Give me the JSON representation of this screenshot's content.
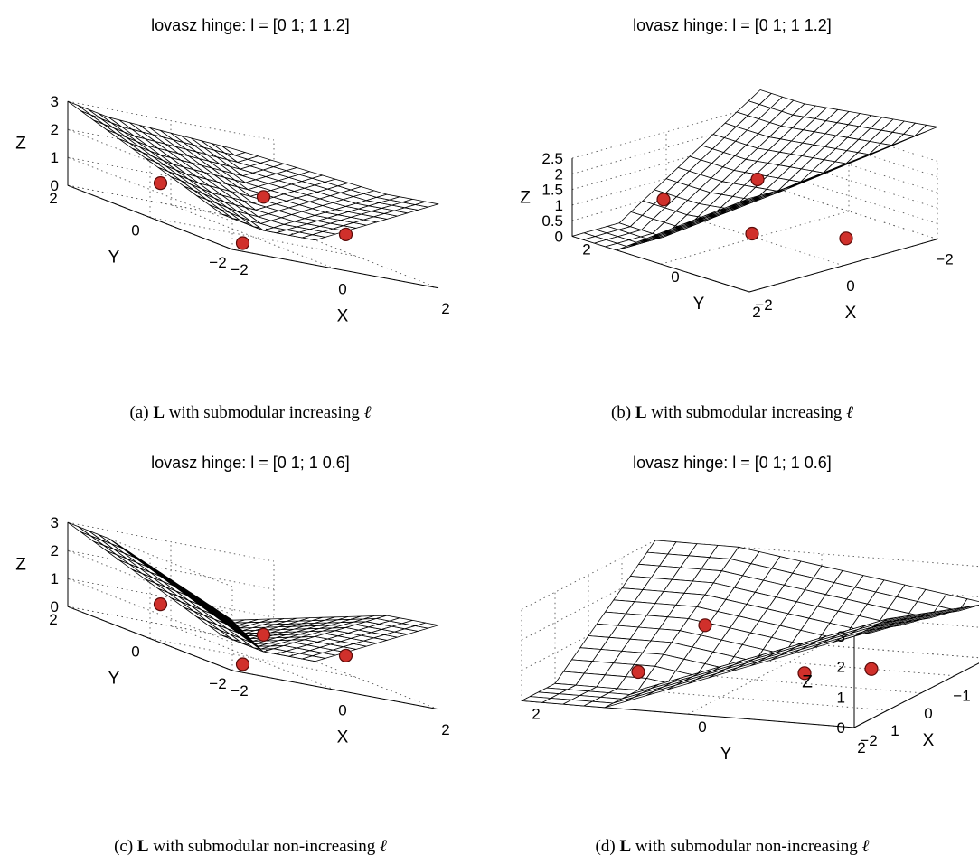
{
  "chart_data": [
    {
      "type": "surface",
      "panel": "(a)",
      "title": "lovasz hinge: l = [0 1; 1 1.2]",
      "xlabel": "X",
      "ylabel": "Y",
      "zlabel": "Z",
      "xlim": [
        -2,
        2
      ],
      "ylim": [
        -2,
        2
      ],
      "zlim": [
        0,
        3
      ],
      "x_ticks": [
        "−2",
        "0",
        "2"
      ],
      "y_ticks": [
        "−2",
        "0",
        "2"
      ],
      "z_ticks": [
        "0",
        "1",
        "2",
        "3"
      ],
      "grid": true,
      "loss": {
        "l00": 0,
        "l01": 1,
        "l10": 1,
        "l11": 1.2
      },
      "points": [
        {
          "x": -1,
          "y": -1,
          "z": 0
        },
        {
          "x": 1,
          "y": -1,
          "z": 1
        },
        {
          "x": -1,
          "y": 1,
          "z": 1
        },
        {
          "x": 1,
          "y": 1,
          "z": 1.2
        }
      ],
      "caption": {
        "label": "(a)",
        "bold": "L",
        "text": "with submodular increasing",
        "symbol": "ℓ"
      }
    },
    {
      "type": "surface",
      "panel": "(b)",
      "title": "lovasz hinge: l = [0 1; 1 1.2]",
      "xlabel": "X",
      "ylabel": "Y",
      "zlabel": "Z",
      "xlim": [
        -2,
        2
      ],
      "ylim": [
        -2,
        2
      ],
      "zlim": [
        0,
        2.5
      ],
      "x_ticks": [
        "2",
        "0",
        "−2"
      ],
      "y_ticks": [
        "−2",
        "0",
        "2"
      ],
      "z_ticks": [
        "0",
        "0.5",
        "1",
        "1.5",
        "2",
        "2.5"
      ],
      "grid": true,
      "loss": {
        "l00": 0,
        "l01": 1,
        "l10": 1,
        "l11": 1.2
      },
      "points": [
        {
          "x": -1,
          "y": -1,
          "z": 0
        },
        {
          "x": 1,
          "y": -1,
          "z": 1
        },
        {
          "x": -1,
          "y": 1,
          "z": 1
        },
        {
          "x": 1,
          "y": 1,
          "z": 1.2
        }
      ],
      "caption": {
        "label": "(b)",
        "bold": "L",
        "text": "with submodular increasing",
        "symbol": "ℓ"
      }
    },
    {
      "type": "surface",
      "panel": "(c)",
      "title": "lovasz hinge: l = [0 1; 1 0.6]",
      "xlabel": "X",
      "ylabel": "Y",
      "zlabel": "Z",
      "xlim": [
        -2,
        2
      ],
      "ylim": [
        -2,
        2
      ],
      "zlim": [
        0,
        3
      ],
      "x_ticks": [
        "−2",
        "0",
        "2"
      ],
      "y_ticks": [
        "−2",
        "0",
        "2"
      ],
      "z_ticks": [
        "0",
        "1",
        "2",
        "3"
      ],
      "grid": true,
      "loss": {
        "l00": 0,
        "l01": 1,
        "l10": 1,
        "l11": 0.6
      },
      "points": [
        {
          "x": -1,
          "y": -1,
          "z": 0
        },
        {
          "x": 1,
          "y": -1,
          "z": 1
        },
        {
          "x": -1,
          "y": 1,
          "z": 1
        },
        {
          "x": 1,
          "y": 1,
          "z": 0.6
        }
      ],
      "caption": {
        "label": "(c)",
        "bold": "L",
        "text": "with submodular non-increasing",
        "symbol": "ℓ"
      }
    },
    {
      "type": "surface",
      "panel": "(d)",
      "title": "lovasz hinge: l = [0 1; 1 0.6]",
      "xlabel": "X",
      "ylabel": "Y",
      "zlabel": "Z",
      "xlim": [
        -2,
        2
      ],
      "ylim": [
        -2,
        2
      ],
      "zlim": [
        0,
        3
      ],
      "x_ticks": [
        "2",
        "1",
        "0",
        "−1",
        "−2"
      ],
      "y_ticks": [
        "−2",
        "0",
        "2"
      ],
      "z_ticks": [
        "0",
        "1",
        "2",
        "3"
      ],
      "grid": true,
      "loss": {
        "l00": 0,
        "l01": 1,
        "l10": 1,
        "l11": 0.6
      },
      "points": [
        {
          "x": -1,
          "y": -1,
          "z": 0
        },
        {
          "x": 1,
          "y": -1,
          "z": 1
        },
        {
          "x": -1,
          "y": 1,
          "z": 1
        },
        {
          "x": 1,
          "y": 1,
          "z": 0.6
        }
      ],
      "caption": {
        "label": "(d)",
        "bold": "L",
        "text": "with submodular non-increasing",
        "symbol": "ℓ"
      }
    }
  ],
  "colors": {
    "point_fill": "#d0302b",
    "mesh_fill": "#ffffff",
    "mesh_stroke": "#000000"
  }
}
